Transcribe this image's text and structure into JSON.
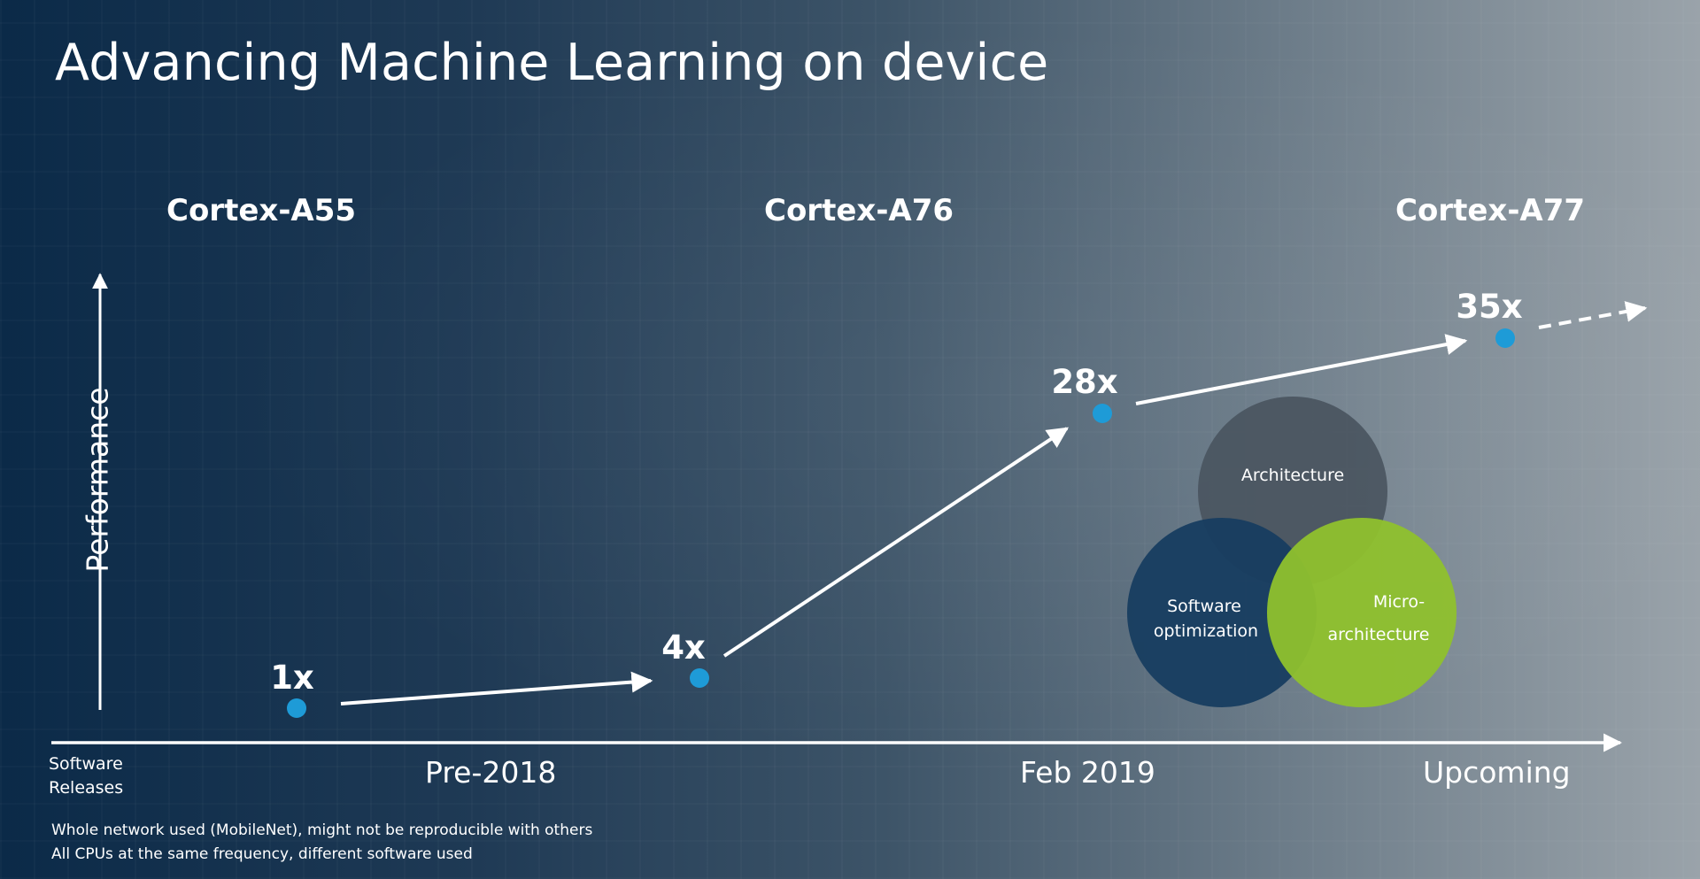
{
  "slide": {
    "title": "Advancing Machine Learning on device"
  },
  "chart_data": {
    "type": "line",
    "title": "Advancing Machine Learning on device",
    "ylabel": "Performance",
    "xlabel": "Software Releases",
    "x_periods": [
      "Pre-2018",
      "Feb 2019",
      "Upcoming"
    ],
    "cpus": [
      "Cortex-A55",
      "Cortex-A76",
      "Cortex-A77"
    ],
    "points": [
      {
        "label": "1x",
        "value": 1
      },
      {
        "label": "4x",
        "value": 4
      },
      {
        "label": "28x",
        "value": 28
      },
      {
        "label": "35x",
        "value": 35
      }
    ],
    "trend_continues": true,
    "point_color": "#1e9bd7",
    "venn": {
      "sets": [
        {
          "label": "Architecture",
          "color": "#4a5560"
        },
        {
          "label_lines": [
            "Software",
            "optimization"
          ],
          "color": "#173d60"
        },
        {
          "label_lines": [
            "Micro-",
            "architecture"
          ],
          "color": "#8fc12d"
        }
      ]
    },
    "footnotes": [
      "Whole network used (MobileNet), might not be reproducible with others",
      "All CPUs at the same frequency, different software used"
    ]
  }
}
